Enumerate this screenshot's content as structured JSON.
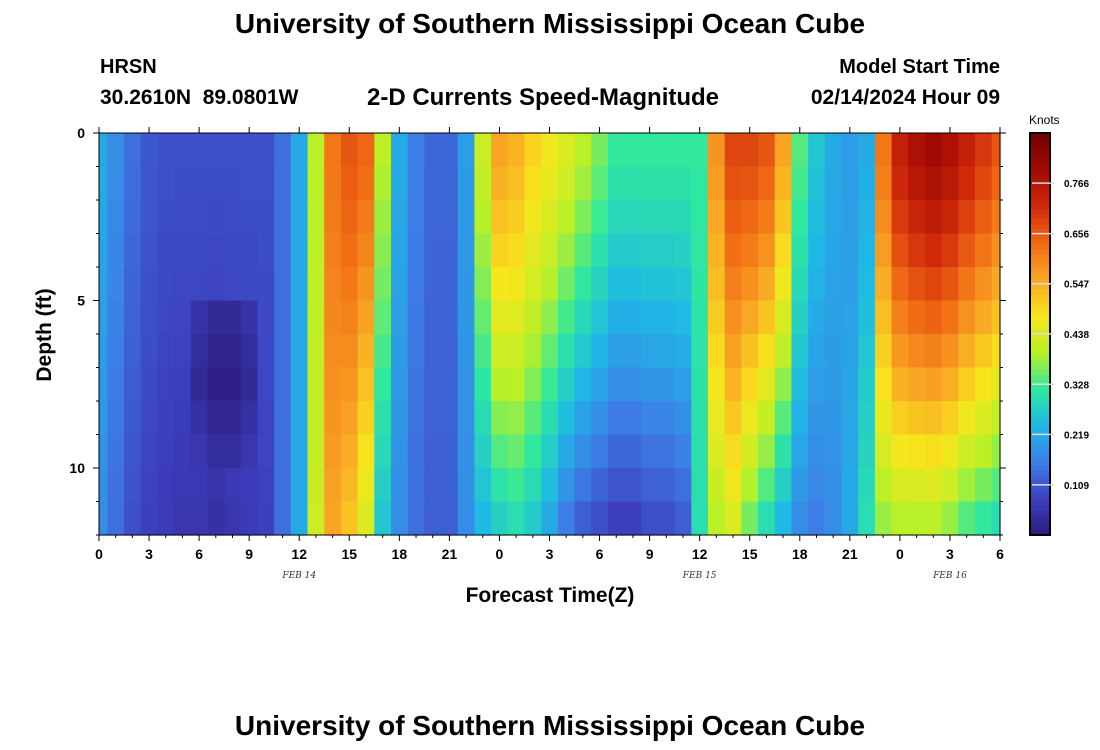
{
  "header": {
    "title": "University of Southern Mississippi Ocean Cube",
    "station": "HRSN",
    "coords": "30.2610N  89.0801W",
    "plot_title": "2-D Currents Speed-Magnitude",
    "start_label": "Model Start Time",
    "start_value": "02/14/2024 Hour 09"
  },
  "footer": {
    "title": "University of Southern Mississippi Ocean Cube"
  },
  "colors": {
    "scale": [
      "#2b1a7a",
      "#3d3fbf",
      "#3d7ee6",
      "#1fb8e6",
      "#2ee8a0",
      "#b8f028",
      "#f8e61c",
      "#f9a725",
      "#f06a14",
      "#d02a0a",
      "#a40a04",
      "#700000"
    ]
  },
  "chart_data": {
    "type": "heatmap",
    "title": "2-D Currents Speed-Magnitude",
    "xlabel": "Forecast Time(Z)",
    "ylabel": "Depth (ft)",
    "units": "Knots",
    "xlim": [
      0,
      54
    ],
    "ylim": [
      0,
      12
    ],
    "x_ticks": [
      0,
      3,
      6,
      9,
      12,
      15,
      18,
      21,
      24,
      27,
      30,
      33,
      36,
      39,
      42,
      45,
      48,
      51,
      54
    ],
    "x_tick_labels": [
      "0",
      "3",
      "6",
      "9",
      "12",
      "15",
      "18",
      "21",
      "0",
      "3",
      "6",
      "9",
      "12",
      "15",
      "18",
      "21",
      "0",
      "3",
      "6"
    ],
    "y_ticks": [
      0,
      5,
      10
    ],
    "y_tick_labels": [
      "0",
      "5",
      "10"
    ],
    "date_labels": [
      {
        "x": 12,
        "label": "FEB 14"
      },
      {
        "x": 36,
        "label": "FEB 15"
      },
      {
        "x": 51,
        "label": "FEB 16"
      }
    ],
    "colorbar": {
      "min": 0.0,
      "max": 0.875,
      "ticks": [
        0.109,
        0.219,
        0.328,
        0.438,
        0.547,
        0.656,
        0.766
      ],
      "tick_labels": [
        "0.109",
        "0.219",
        "0.328",
        "0.438",
        "0.547",
        "0.656",
        "0.766"
      ]
    },
    "time_hours": [
      0,
      1,
      2,
      3,
      4,
      5,
      6,
      7,
      8,
      9,
      10,
      11,
      12,
      13,
      14,
      15,
      16,
      17,
      18,
      19,
      20,
      21,
      22,
      23,
      24,
      25,
      26,
      27,
      28,
      29,
      30,
      31,
      32,
      33,
      34,
      35,
      36,
      37,
      38,
      39,
      40,
      41,
      42,
      43,
      44,
      45,
      46,
      47,
      48,
      49,
      50,
      51,
      52,
      53,
      54
    ],
    "surface_speed_knots": [
      0.22,
      0.18,
      0.14,
      0.11,
      0.1,
      0.1,
      0.1,
      0.1,
      0.1,
      0.1,
      0.1,
      0.14,
      0.22,
      0.4,
      0.62,
      0.66,
      0.64,
      0.4,
      0.22,
      0.16,
      0.13,
      0.13,
      0.2,
      0.42,
      0.56,
      0.54,
      0.5,
      0.47,
      0.44,
      0.4,
      0.36,
      0.32,
      0.32,
      0.32,
      0.32,
      0.32,
      0.32,
      0.58,
      0.68,
      0.68,
      0.66,
      0.56,
      0.34,
      0.26,
      0.22,
      0.2,
      0.22,
      0.62,
      0.74,
      0.78,
      0.8,
      0.78,
      0.74,
      0.7,
      0.66
    ],
    "deep_speed_knots": [
      0.18,
      0.14,
      0.1,
      0.08,
      0.07,
      0.06,
      0.06,
      0.05,
      0.06,
      0.07,
      0.08,
      0.14,
      0.22,
      0.42,
      0.56,
      0.52,
      0.44,
      0.26,
      0.18,
      0.14,
      0.12,
      0.12,
      0.18,
      0.24,
      0.28,
      0.3,
      0.27,
      0.22,
      0.16,
      0.12,
      0.1,
      0.08,
      0.08,
      0.1,
      0.1,
      0.12,
      0.3,
      0.4,
      0.44,
      0.36,
      0.3,
      0.24,
      0.18,
      0.16,
      0.18,
      0.22,
      0.3,
      0.38,
      0.4,
      0.4,
      0.4,
      0.38,
      0.34,
      0.32,
      0.3
    ],
    "dark_pocket": {
      "time_hours": [
        6,
        9
      ],
      "depth_ft": [
        5.5,
        9.5
      ],
      "min_speed_knots": 0.0
    }
  }
}
